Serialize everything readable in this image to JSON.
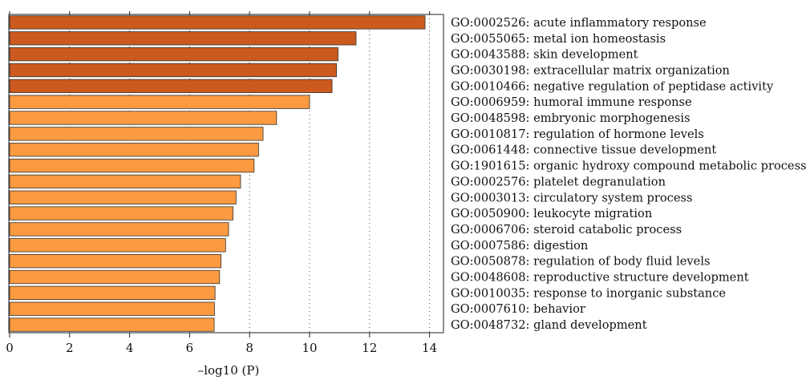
{
  "chart_data": {
    "type": "bar",
    "orientation": "horizontal",
    "title": "",
    "xlabel": "–log10 (P)",
    "ylabel": "",
    "xlim": [
      0,
      14.7
    ],
    "xticks": [
      0,
      2,
      4,
      6,
      8,
      10,
      12,
      14
    ],
    "grid": "dotted vertical",
    "legend": "none",
    "colors": {
      "top": "#cc5a1e",
      "rest": "#fb9a40",
      "edge": "#333333"
    },
    "highlight_count": 5,
    "categories": [
      "GO:0002526: acute inflammatory response",
      "GO:0055065: metal ion homeostasis",
      "GO:0043588: skin development",
      "GO:0030198: extracellular matrix organization",
      "GO:0010466: negative regulation of peptidase activity",
      "GO:0006959: humoral immune response",
      "GO:0048598: embryonic morphogenesis",
      "GO:0010817: regulation of hormone levels",
      "GO:0061448: connective tissue development",
      "GO:1901615: organic hydroxy compound metabolic process",
      "GO:0002576: platelet degranulation",
      "GO:0003013: circulatory system process",
      "GO:0050900: leukocyte migration",
      "GO:0006706: steroid catabolic process",
      "GO:0007586: digestion",
      "GO:0050878: regulation of body fluid levels",
      "GO:0048608: reproductive structure development",
      "GO:0010035: response to inorganic substance",
      "GO:0007610: behavior",
      "GO:0048732: gland development"
    ],
    "values": [
      13.85,
      11.55,
      10.95,
      10.9,
      10.75,
      10.0,
      8.9,
      8.45,
      8.3,
      8.15,
      7.7,
      7.55,
      7.45,
      7.3,
      7.2,
      7.05,
      7.0,
      6.85,
      6.83,
      6.82
    ]
  }
}
